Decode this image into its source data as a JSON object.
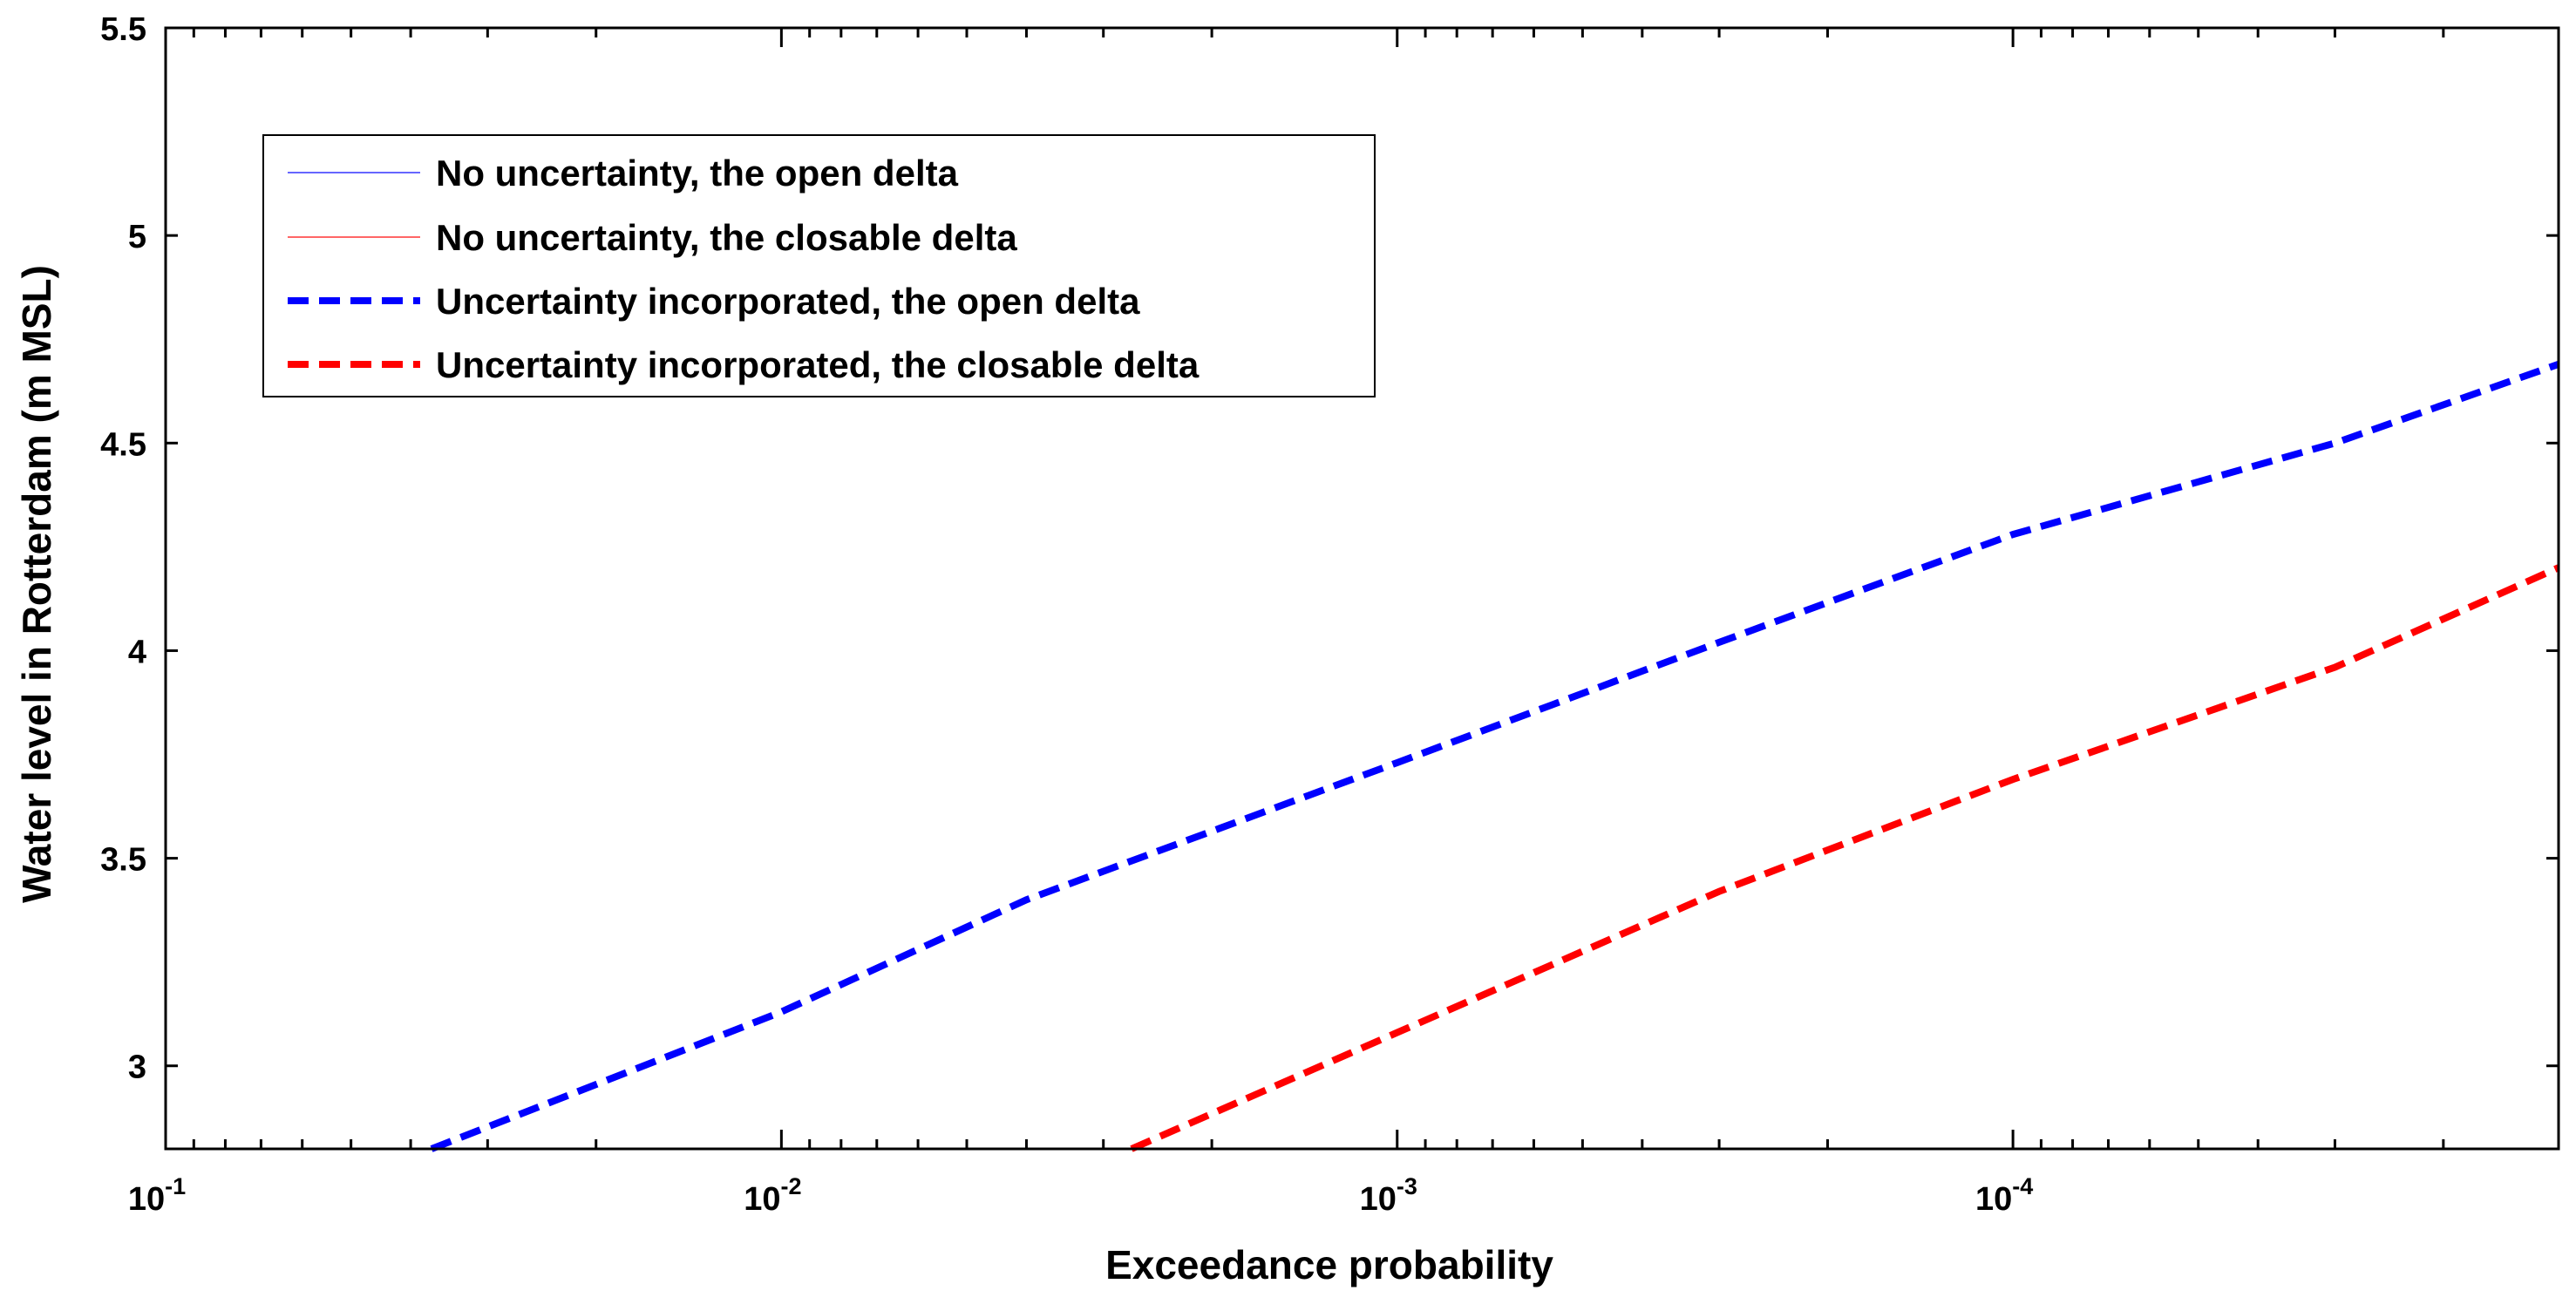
{
  "chart_data": {
    "type": "line",
    "title": "",
    "xlabel": "Exceedance probability",
    "ylabel": "Water level in Rotterdam (m MSL)",
    "xscale": "log",
    "x_reversed": true,
    "xlim": [
      0.1,
      1.3e-05
    ],
    "ylim": [
      2.8,
      5.5
    ],
    "x_ticks": [
      {
        "value": 0.1,
        "base": "10",
        "exp": "-1"
      },
      {
        "value": 0.01,
        "base": "10",
        "exp": "-2"
      },
      {
        "value": 0.001,
        "base": "10",
        "exp": "-3"
      },
      {
        "value": 0.0001,
        "base": "10",
        "exp": "-4"
      }
    ],
    "y_ticks": [
      {
        "value": 3,
        "label": "3"
      },
      {
        "value": 3.5,
        "label": "3.5"
      },
      {
        "value": 4,
        "label": "4"
      },
      {
        "value": 4.5,
        "label": "4.5"
      },
      {
        "value": 5,
        "label": "5"
      },
      {
        "value": 5.5,
        "label": "5.5"
      }
    ],
    "grid": false,
    "legend_position": "top-left",
    "series": [
      {
        "name": "No uncertainty, the open delta",
        "color": "#6666ff",
        "style": "solid-thin",
        "points": []
      },
      {
        "name": "No uncertainty, the closable delta",
        "color": "#ff6666",
        "style": "solid-thin",
        "points": []
      },
      {
        "name": "Uncertainty incorporated, the open delta",
        "color": "#0000ff",
        "style": "dashed",
        "points": [
          {
            "x": 0.037,
            "y": 2.8
          },
          {
            "x": 0.01,
            "y": 3.13
          },
          {
            "x": 0.004,
            "y": 3.4
          },
          {
            "x": 0.001,
            "y": 3.73
          },
          {
            "x": 0.0003,
            "y": 4.02
          },
          {
            "x": 0.0001,
            "y": 4.28
          },
          {
            "x": 3e-05,
            "y": 4.5
          },
          {
            "x": 1.3e-05,
            "y": 4.69
          }
        ]
      },
      {
        "name": "Uncertainty incorporated, the closable delta",
        "color": "#ff0000",
        "style": "dashed",
        "points": [
          {
            "x": 0.0027,
            "y": 2.8
          },
          {
            "x": 0.001,
            "y": 3.08
          },
          {
            "x": 0.0003,
            "y": 3.42
          },
          {
            "x": 0.0001,
            "y": 3.69
          },
          {
            "x": 3e-05,
            "y": 3.96
          },
          {
            "x": 1.3e-05,
            "y": 4.2
          }
        ]
      }
    ]
  }
}
